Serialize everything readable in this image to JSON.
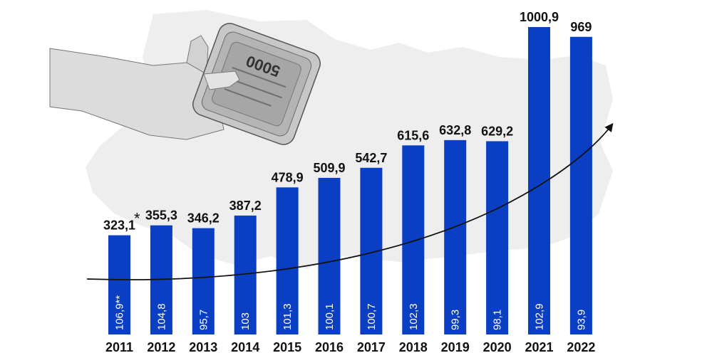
{
  "colors": {
    "bar": "#0a3fc4",
    "map_background": "#eeeeee",
    "text": "#111111",
    "inbar_text": "#ffffff",
    "trend": "#111111"
  },
  "illustration": {
    "banknote_denomination": "5000"
  },
  "chart_data": {
    "type": "bar",
    "categories": [
      "2011",
      "2012",
      "2013",
      "2014",
      "2015",
      "2016",
      "2017",
      "2018",
      "2019",
      "2020",
      "2021",
      "2022"
    ],
    "series": [
      {
        "values": [
          323.1,
          355.3,
          346.2,
          387.2,
          478.9,
          509.9,
          542.7,
          615.6,
          632.8,
          629.2,
          1000.9,
          969
        ],
        "labels": [
          "323,1",
          "355,3",
          "346,2",
          "387,2",
          "478,9",
          "509,9",
          "542,7",
          "615,6",
          "632,8",
          "629,2",
          "1000,9",
          "969"
        ]
      },
      {
        "values": [
          106.9,
          104.8,
          95.7,
          103,
          101.3,
          100.1,
          100.7,
          102.3,
          99.3,
          98.1,
          102.9,
          93.9
        ],
        "labels": [
          "106,9**",
          "104,8",
          "95,7",
          "103",
          "101,3",
          "100,1",
          "100,7",
          "102,3",
          "99,3",
          "98,1",
          "102,9",
          "93,9"
        ]
      }
    ],
    "annotations": [
      {
        "category": "2011",
        "text": "*"
      }
    ],
    "title": "",
    "xlabel": "",
    "ylabel": "",
    "ylim": [
      0,
      1000.9
    ],
    "grid": false,
    "legend": "none",
    "trend_arrow": true
  }
}
